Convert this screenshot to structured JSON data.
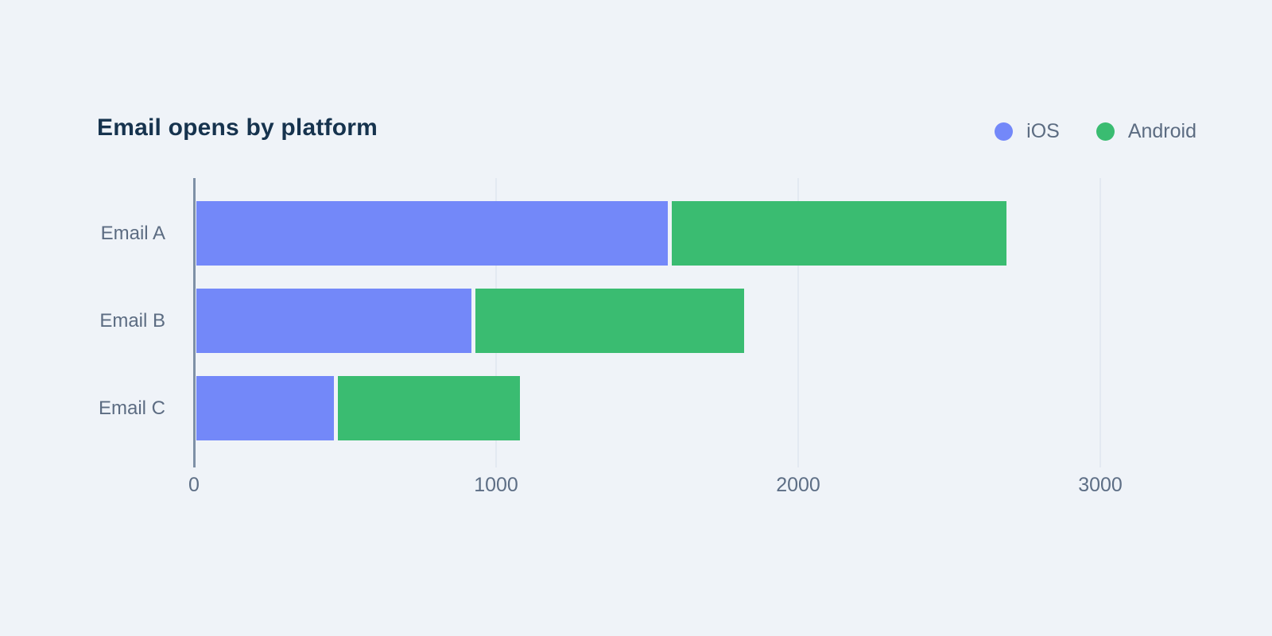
{
  "chart_data": {
    "type": "bar",
    "orientation": "horizontal",
    "stacked": true,
    "title": "Email opens by platform",
    "categories": [
      "Email A",
      "Email B",
      "Email C"
    ],
    "series": [
      {
        "name": "iOS",
        "color": "#7388f9",
        "values": [
          1575,
          925,
          470
        ]
      },
      {
        "name": "Android",
        "color": "#3abc71",
        "values": [
          1115,
          895,
          610
        ]
      }
    ],
    "totals": [
      2690,
      1820,
      1080
    ],
    "xlabel": "",
    "ylabel": "",
    "xlim": [
      0,
      3200
    ],
    "xticks": [
      0,
      1000,
      2000,
      3000
    ],
    "xtick_labels": [
      "0",
      "1000",
      "2000",
      "3000"
    ],
    "grid": true,
    "legend_position": "top-right",
    "colors": {
      "background": "#eff3f8",
      "title_text": "#16334e",
      "label_text": "#5c6c82",
      "tick_text": "#5d6e85",
      "gridline": "#e3e9f1",
      "axis_line": "#7e90a6"
    }
  }
}
